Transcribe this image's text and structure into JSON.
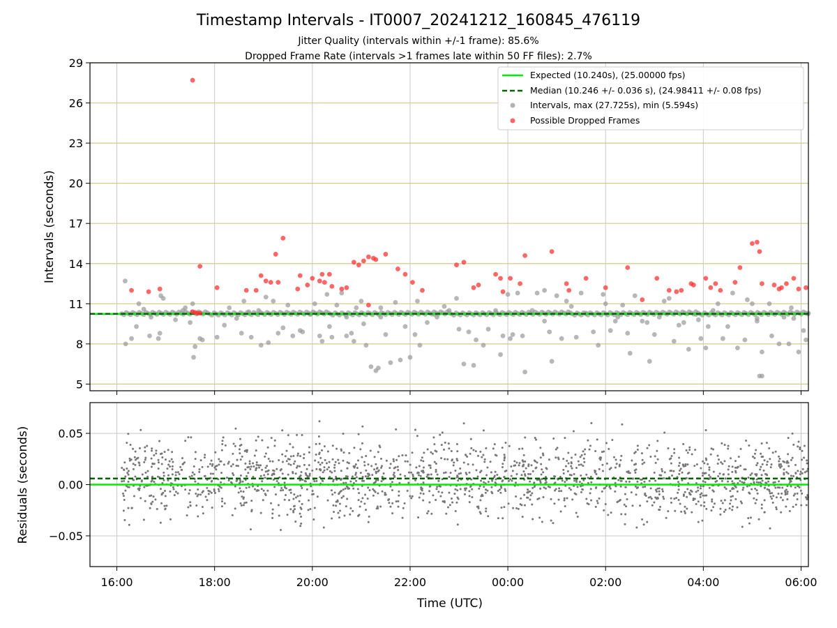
{
  "chart_data": [
    {
      "type": "scatter",
      "title": "Timestamp Intervals - IT0007_20241212_160845_476119",
      "subtitle_lines": [
        "Jitter Quality (intervals within +/-1 frame): 85.6%",
        "Dropped Frame Rate (intervals >1 frames late within 50 FF files): 2.7%"
      ],
      "xlabel": "",
      "ylabel": "Intervals (seconds)",
      "xlim_hours": [
        15.45,
        30.15
      ],
      "ylim": [
        4.5,
        29
      ],
      "yticks": [
        5,
        8,
        11,
        14,
        17,
        20,
        23,
        26,
        29
      ],
      "ytick_labels": [
        "5",
        "8",
        "11",
        "14",
        "17",
        "20",
        "23",
        "26",
        "29"
      ],
      "grid": true,
      "horizontal_grid_color": "#d4c98a",
      "legend_position": "upper-right",
      "legend": [
        {
          "label": "Expected (10.240s), (25.00000 fps)",
          "style": "solid-line",
          "color": "#00ee00"
        },
        {
          "label": "Median (10.246 +/- 0.036 s), (24.98411 +/- 0.08 fps)",
          "style": "dashed-line",
          "color": "#006400"
        },
        {
          "label": "Intervals, max (27.725s), min (5.594s)",
          "style": "marker",
          "color": "#999999"
        },
        {
          "label": "Possible Dropped Frames",
          "style": "marker",
          "color": "#ff3333"
        }
      ],
      "expected_interval": 10.24,
      "median_interval": 10.246,
      "max_interval": 27.725,
      "min_interval": 5.594,
      "series": [
        {
          "name": "Intervals, max (27.725s), min (5.594s)",
          "color": "#999999",
          "points": [
            [
              16.17,
              12.7
            ],
            [
              16.18,
              8.0
            ],
            [
              16.3,
              8.4
            ],
            [
              16.4,
              9.3
            ],
            [
              16.45,
              11.0
            ],
            [
              16.55,
              10.6
            ],
            [
              16.67,
              8.6
            ],
            [
              16.85,
              8.4
            ],
            [
              16.88,
              8.8
            ],
            [
              16.9,
              11.6
            ],
            [
              16.95,
              11.4
            ],
            [
              17.2,
              9.8
            ],
            [
              17.4,
              10.7
            ],
            [
              17.5,
              9.6
            ],
            [
              17.55,
              11.0
            ],
            [
              17.57,
              7.0
            ],
            [
              17.6,
              7.8
            ],
            [
              17.7,
              8.4
            ],
            [
              17.75,
              8.3
            ],
            [
              18.05,
              8.5
            ],
            [
              18.2,
              9.4
            ],
            [
              18.3,
              10.7
            ],
            [
              18.45,
              9.9
            ],
            [
              18.55,
              8.8
            ],
            [
              18.6,
              11.2
            ],
            [
              18.75,
              8.5
            ],
            [
              18.9,
              10.5
            ],
            [
              18.95,
              7.9
            ],
            [
              19.05,
              11.5
            ],
            [
              19.1,
              8.1
            ],
            [
              19.2,
              11.2
            ],
            [
              19.3,
              8.8
            ],
            [
              19.4,
              9.2
            ],
            [
              19.5,
              10.9
            ],
            [
              19.6,
              8.6
            ],
            [
              19.75,
              9.0
            ],
            [
              19.8,
              8.9
            ],
            [
              19.95,
              10.2
            ],
            [
              20.05,
              11.0
            ],
            [
              20.15,
              8.6
            ],
            [
              20.2,
              8.2
            ],
            [
              20.3,
              11.7
            ],
            [
              20.35,
              9.3
            ],
            [
              20.4,
              8.5
            ],
            [
              20.5,
              10.9
            ],
            [
              20.6,
              11.8
            ],
            [
              20.7,
              8.6
            ],
            [
              20.8,
              8.8
            ],
            [
              20.85,
              8.2
            ],
            [
              20.9,
              10.7
            ],
            [
              21.0,
              11.2
            ],
            [
              21.05,
              9.5
            ],
            [
              21.1,
              7.9
            ],
            [
              21.2,
              6.3
            ],
            [
              21.3,
              6.0
            ],
            [
              21.35,
              6.2
            ],
            [
              21.4,
              10.7
            ],
            [
              21.5,
              8.7
            ],
            [
              21.6,
              6.6
            ],
            [
              21.7,
              11.1
            ],
            [
              21.8,
              6.8
            ],
            [
              21.9,
              9.3
            ],
            [
              22.0,
              7.0
            ],
            [
              22.1,
              8.7
            ],
            [
              22.15,
              11.2
            ],
            [
              22.2,
              7.9
            ],
            [
              22.35,
              9.6
            ],
            [
              22.5,
              10.2
            ],
            [
              22.7,
              10.8
            ],
            [
              22.8,
              10.5
            ],
            [
              22.95,
              11.4
            ],
            [
              23.0,
              9.1
            ],
            [
              23.1,
              6.5
            ],
            [
              23.2,
              8.9
            ],
            [
              23.3,
              6.4
            ],
            [
              23.35,
              8.3
            ],
            [
              23.5,
              7.9
            ],
            [
              23.6,
              9.1
            ],
            [
              23.75,
              10.5
            ],
            [
              23.85,
              7.2
            ],
            [
              23.9,
              8.6
            ],
            [
              24.0,
              11.7
            ],
            [
              24.05,
              8.4
            ],
            [
              24.1,
              8.7
            ],
            [
              24.2,
              11.8
            ],
            [
              24.3,
              8.6
            ],
            [
              24.35,
              5.9
            ],
            [
              24.5,
              10.5
            ],
            [
              24.6,
              11.8
            ],
            [
              24.75,
              12.0
            ],
            [
              24.85,
              8.9
            ],
            [
              24.9,
              6.7
            ],
            [
              25.0,
              11.6
            ],
            [
              25.1,
              8.4
            ],
            [
              25.2,
              11.2
            ],
            [
              25.3,
              10.8
            ],
            [
              25.4,
              8.5
            ],
            [
              25.5,
              11.8
            ],
            [
              25.6,
              10.3
            ],
            [
              25.75,
              8.9
            ],
            [
              25.85,
              7.9
            ],
            [
              25.95,
              11.7
            ],
            [
              26.0,
              11.0
            ],
            [
              26.1,
              9.0
            ],
            [
              26.2,
              9.7
            ],
            [
              26.35,
              10.9
            ],
            [
              26.45,
              8.8
            ],
            [
              26.5,
              7.3
            ],
            [
              26.6,
              11.6
            ],
            [
              26.75,
              9.7
            ],
            [
              26.85,
              9.6
            ],
            [
              26.9,
              6.7
            ],
            [
              27.0,
              8.7
            ],
            [
              27.1,
              10.0
            ],
            [
              27.2,
              11.2
            ],
            [
              27.3,
              11.4
            ],
            [
              27.4,
              8.2
            ],
            [
              27.5,
              9.4
            ],
            [
              27.6,
              9.6
            ],
            [
              27.7,
              7.6
            ],
            [
              27.85,
              10.2
            ],
            [
              27.95,
              8.4
            ],
            [
              28.05,
              7.7
            ],
            [
              28.1,
              9.3
            ],
            [
              28.2,
              10.5
            ],
            [
              28.3,
              11.0
            ],
            [
              28.4,
              8.4
            ],
            [
              28.5,
              9.3
            ],
            [
              28.6,
              11.8
            ],
            [
              28.7,
              7.7
            ],
            [
              28.85,
              8.3
            ],
            [
              28.9,
              11.3
            ],
            [
              29.0,
              11.0
            ],
            [
              29.1,
              9.7
            ],
            [
              29.2,
              7.4
            ],
            [
              29.35,
              11.0
            ],
            [
              29.4,
              8.6
            ],
            [
              29.55,
              8.0
            ],
            [
              29.65,
              10.0
            ],
            [
              29.75,
              8.0
            ],
            [
              29.8,
              10.7
            ],
            [
              29.85,
              9.9
            ],
            [
              29.95,
              7.4
            ],
            [
              30.05,
              9.0
            ],
            [
              30.1,
              8.3
            ],
            [
              30.15,
              10.3
            ],
            [
              16.7,
              10.0
            ],
            [
              17.35,
              10.5
            ],
            [
              18.7,
              10.4
            ],
            [
              20.7,
              10.0
            ],
            [
              21.4,
              10.0
            ],
            [
              22.55,
              10.0
            ],
            [
              24.75,
              9.7
            ],
            [
              26.25,
              10.0
            ],
            [
              27.9,
              9.8
            ],
            [
              29.1,
              9.9
            ],
            [
              29.15,
              5.6
            ],
            [
              29.2,
              5.6
            ]
          ]
        },
        {
          "name": "Possible Dropped Frames",
          "color": "#ff3333",
          "points": [
            [
              17.55,
              27.7
            ],
            [
              16.3,
              12.0
            ],
            [
              16.65,
              11.9
            ],
            [
              16.88,
              12.1
            ],
            [
              17.7,
              13.8
            ],
            [
              18.05,
              12.2
            ],
            [
              18.65,
              12.0
            ],
            [
              18.85,
              12.0
            ],
            [
              18.95,
              13.1
            ],
            [
              19.05,
              12.7
            ],
            [
              19.15,
              12.6
            ],
            [
              19.25,
              14.7
            ],
            [
              19.3,
              12.6
            ],
            [
              19.4,
              15.9
            ],
            [
              19.7,
              12.1
            ],
            [
              19.75,
              13.1
            ],
            [
              19.9,
              12.4
            ],
            [
              20.0,
              12.9
            ],
            [
              20.15,
              12.7
            ],
            [
              20.2,
              13.2
            ],
            [
              20.25,
              12.6
            ],
            [
              20.35,
              13.2
            ],
            [
              20.4,
              12.3
            ],
            [
              20.6,
              12.1
            ],
            [
              20.7,
              12.2
            ],
            [
              20.85,
              14.1
            ],
            [
              20.95,
              13.9
            ],
            [
              21.05,
              14.2
            ],
            [
              21.15,
              14.5
            ],
            [
              21.25,
              14.4
            ],
            [
              21.3,
              14.3
            ],
            [
              21.5,
              14.7
            ],
            [
              21.75,
              13.6
            ],
            [
              21.9,
              13.2
            ],
            [
              22.05,
              12.6
            ],
            [
              22.25,
              12.0
            ],
            [
              22.95,
              13.9
            ],
            [
              23.1,
              14.1
            ],
            [
              23.3,
              12.2
            ],
            [
              23.4,
              12.4
            ],
            [
              23.75,
              13.2
            ],
            [
              23.85,
              12.9
            ],
            [
              23.9,
              11.9
            ],
            [
              24.25,
              12.5
            ],
            [
              24.05,
              12.9
            ],
            [
              24.35,
              14.6
            ],
            [
              24.9,
              14.9
            ],
            [
              25.2,
              12.5
            ],
            [
              25.25,
              12.0
            ],
            [
              25.6,
              12.9
            ],
            [
              26.0,
              12.2
            ],
            [
              26.45,
              13.7
            ],
            [
              26.75,
              11.3
            ],
            [
              27.05,
              12.9
            ],
            [
              27.3,
              12.0
            ],
            [
              27.45,
              11.9
            ],
            [
              27.55,
              12.0
            ],
            [
              27.75,
              12.5
            ],
            [
              27.8,
              12.4
            ],
            [
              28.05,
              12.9
            ],
            [
              28.15,
              12.2
            ],
            [
              28.25,
              12.5
            ],
            [
              28.35,
              12.0
            ],
            [
              28.65,
              12.6
            ],
            [
              28.75,
              13.7
            ],
            [
              29.0,
              15.5
            ],
            [
              29.1,
              15.6
            ],
            [
              29.15,
              14.9
            ],
            [
              29.2,
              12.5
            ],
            [
              29.45,
              12.4
            ],
            [
              29.55,
              12.1
            ],
            [
              29.6,
              12.2
            ],
            [
              29.7,
              12.5
            ],
            [
              29.85,
              12.9
            ],
            [
              29.95,
              12.1
            ],
            [
              30.1,
              12.2
            ],
            [
              21.15,
              10.9
            ],
            [
              17.55,
              10.4
            ],
            [
              17.6,
              10.35
            ],
            [
              17.65,
              10.3
            ],
            [
              17.7,
              10.3
            ]
          ]
        }
      ]
    },
    {
      "type": "scatter",
      "title": "",
      "xlabel": "Time (UTC)",
      "ylabel": "Residuals (seconds)",
      "xlim_hours": [
        15.45,
        30.15
      ],
      "ylim": [
        -0.08,
        0.08
      ],
      "yticks": [
        -0.05,
        0.0,
        0.05
      ],
      "ytick_labels": [
        "−0.05",
        "0.00",
        "0.05"
      ],
      "xticks_hours": [
        16,
        18,
        20,
        22,
        24,
        26,
        28,
        30
      ],
      "xtick_labels": [
        "16:00",
        "18:00",
        "20:00",
        "22:00",
        "00:00",
        "02:00",
        "04:00",
        "06:00"
      ],
      "grid": true,
      "expected_residual": 0.0,
      "median_residual": 0.006,
      "series": [
        {
          "name": "",
          "color": "#777777",
          "distribution": "dense residual points centered near 0.005 s, mostly within ±0.04 s, extremes about ±0.075 s",
          "x_range_hours": [
            16.1,
            30.15
          ],
          "point_count": 1800
        }
      ]
    }
  ]
}
